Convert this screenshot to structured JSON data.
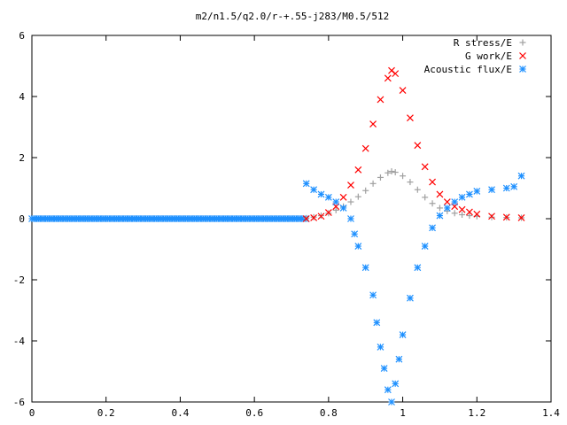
{
  "chart_data": {
    "type": "scatter",
    "title": "m2/n1.5/q2.0/r-+.55-j283/M0.5/512",
    "xlabel": "",
    "ylabel": "",
    "xlim": [
      0,
      1.4
    ],
    "ylim": [
      -6,
      6
    ],
    "x_ticks": [
      "0",
      "0.2",
      "0.4",
      "0.6",
      "0.8",
      "1",
      "1.2",
      "1.4"
    ],
    "y_ticks": [
      "6",
      "4",
      "2",
      "0",
      "-2",
      "-4",
      "-6"
    ],
    "grid": false,
    "legend_position": "top-right",
    "series": [
      {
        "name": "R stress/E",
        "color": "#a0a0a0",
        "marker": "plus",
        "points": [
          [
            0.74,
            0.02
          ],
          [
            0.76,
            0.05
          ],
          [
            0.78,
            0.1
          ],
          [
            0.8,
            0.18
          ],
          [
            0.82,
            0.28
          ],
          [
            0.84,
            0.4
          ],
          [
            0.86,
            0.55
          ],
          [
            0.88,
            0.72
          ],
          [
            0.9,
            0.92
          ],
          [
            0.92,
            1.15
          ],
          [
            0.94,
            1.35
          ],
          [
            0.96,
            1.5
          ],
          [
            0.97,
            1.55
          ],
          [
            0.98,
            1.52
          ],
          [
            1.0,
            1.4
          ],
          [
            1.02,
            1.2
          ],
          [
            1.04,
            0.95
          ],
          [
            1.06,
            0.7
          ],
          [
            1.08,
            0.5
          ],
          [
            1.1,
            0.35
          ],
          [
            1.12,
            0.25
          ],
          [
            1.14,
            0.18
          ],
          [
            1.16,
            0.13
          ],
          [
            1.18,
            0.1
          ],
          [
            1.2,
            0.08
          ],
          [
            1.24,
            0.05
          ],
          [
            1.28,
            0.04
          ],
          [
            1.32,
            0.03
          ]
        ]
      },
      {
        "name": "G work/E",
        "color": "#ff0000",
        "marker": "cross",
        "points": [
          [
            0.74,
            0.0
          ],
          [
            0.76,
            0.03
          ],
          [
            0.78,
            0.08
          ],
          [
            0.8,
            0.2
          ],
          [
            0.82,
            0.4
          ],
          [
            0.84,
            0.7
          ],
          [
            0.86,
            1.1
          ],
          [
            0.88,
            1.6
          ],
          [
            0.9,
            2.3
          ],
          [
            0.92,
            3.1
          ],
          [
            0.94,
            3.9
          ],
          [
            0.96,
            4.6
          ],
          [
            0.97,
            4.85
          ],
          [
            0.98,
            4.75
          ],
          [
            1.0,
            4.2
          ],
          [
            1.02,
            3.3
          ],
          [
            1.04,
            2.4
          ],
          [
            1.06,
            1.7
          ],
          [
            1.08,
            1.2
          ],
          [
            1.1,
            0.8
          ],
          [
            1.12,
            0.55
          ],
          [
            1.14,
            0.4
          ],
          [
            1.16,
            0.3
          ],
          [
            1.18,
            0.22
          ],
          [
            1.2,
            0.15
          ],
          [
            1.24,
            0.08
          ],
          [
            1.28,
            0.05
          ],
          [
            1.32,
            0.03
          ]
        ]
      },
      {
        "name": "Acoustic flux/E",
        "color": "#1e90ff",
        "marker": "star",
        "points": [
          [
            0.74,
            1.15
          ],
          [
            0.76,
            0.95
          ],
          [
            0.78,
            0.8
          ],
          [
            0.8,
            0.7
          ],
          [
            0.82,
            0.55
          ],
          [
            0.84,
            0.35
          ],
          [
            0.86,
            0.0
          ],
          [
            0.87,
            -0.5
          ],
          [
            0.88,
            -0.9
          ],
          [
            0.9,
            -1.6
          ],
          [
            0.92,
            -2.5
          ],
          [
            0.93,
            -3.4
          ],
          [
            0.94,
            -4.2
          ],
          [
            0.95,
            -4.9
          ],
          [
            0.96,
            -5.6
          ],
          [
            0.97,
            -6.0
          ],
          [
            0.98,
            -5.4
          ],
          [
            0.99,
            -4.6
          ],
          [
            1.0,
            -3.8
          ],
          [
            1.02,
            -2.6
          ],
          [
            1.04,
            -1.6
          ],
          [
            1.06,
            -0.9
          ],
          [
            1.08,
            -0.3
          ],
          [
            1.1,
            0.1
          ],
          [
            1.12,
            0.35
          ],
          [
            1.14,
            0.55
          ],
          [
            1.16,
            0.7
          ],
          [
            1.18,
            0.8
          ],
          [
            1.2,
            0.9
          ],
          [
            1.24,
            0.95
          ],
          [
            1.28,
            1.0
          ],
          [
            1.3,
            1.05
          ],
          [
            1.32,
            1.4
          ]
        ]
      }
    ]
  }
}
